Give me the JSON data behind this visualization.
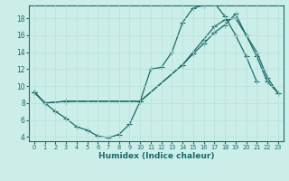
{
  "xlabel": "Humidex (Indice chaleur)",
  "bg_color": "#cceee8",
  "line_color": "#1a6b6b",
  "grid_color": "#b8e0da",
  "xlim": [
    -0.5,
    23.5
  ],
  "ylim": [
    3.5,
    19.5
  ],
  "xticks": [
    0,
    1,
    2,
    3,
    4,
    5,
    6,
    7,
    8,
    9,
    10,
    11,
    12,
    13,
    14,
    15,
    16,
    17,
    18,
    19,
    20,
    21,
    22,
    23
  ],
  "yticks": [
    4,
    6,
    8,
    10,
    12,
    14,
    16,
    18
  ],
  "line1_x": [
    0,
    1,
    2,
    3,
    4,
    5,
    6,
    7,
    8,
    9,
    10,
    11,
    12,
    13,
    14,
    15,
    16,
    17,
    18,
    19,
    20,
    21
  ],
  "line1_y": [
    9.3,
    8.0,
    7.0,
    6.2,
    5.2,
    4.8,
    4.1,
    3.9,
    4.3,
    5.5,
    8.2,
    12.0,
    12.2,
    14.0,
    17.5,
    19.2,
    19.5,
    19.8,
    18.2,
    16.0,
    13.5,
    10.5
  ],
  "line2_x": [
    0,
    1,
    3,
    10,
    14,
    15,
    16,
    17,
    18,
    19,
    20,
    21,
    22,
    23
  ],
  "line2_y": [
    9.3,
    8.0,
    8.2,
    8.2,
    12.5,
    14.0,
    15.5,
    17.0,
    17.8,
    18.0,
    16.0,
    13.5,
    10.5,
    9.2
  ],
  "line3_x": [
    0,
    1,
    3,
    10,
    14,
    15,
    16,
    17,
    18,
    19,
    20,
    21,
    22,
    23
  ],
  "line3_y": [
    9.3,
    8.0,
    8.2,
    8.2,
    12.5,
    13.8,
    15.0,
    16.3,
    17.2,
    18.5,
    16.0,
    14.0,
    11.0,
    9.2
  ]
}
